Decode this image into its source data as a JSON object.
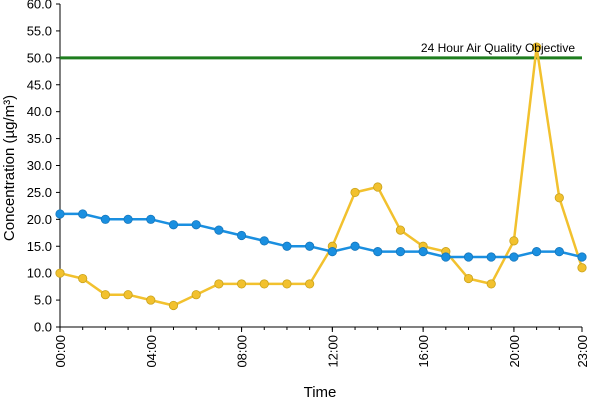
{
  "chart_data": {
    "type": "line",
    "title": "",
    "xlabel": "Time",
    "ylabel": "Concentration (µg/m³)",
    "ylim": [
      0,
      60
    ],
    "yticks": [
      "0.0",
      "5.0",
      "10.0",
      "15.0",
      "20.0",
      "25.0",
      "30.0",
      "35.0",
      "40.0",
      "45.0",
      "50.0",
      "55.0",
      "60.0"
    ],
    "x": [
      0,
      1,
      2,
      3,
      4,
      5,
      6,
      7,
      8,
      9,
      10,
      11,
      12,
      13,
      14,
      15,
      16,
      17,
      18,
      19,
      20,
      21,
      22,
      23
    ],
    "xtick_hours": [
      0,
      4,
      8,
      12,
      16,
      20,
      23
    ],
    "xtick_labels": [
      "00:00",
      "04:00",
      "08:00",
      "12:00",
      "16:00",
      "20:00",
      "23:00"
    ],
    "grid": false,
    "series": [
      {
        "color": "#1a8fe0",
        "values": [
          21,
          21,
          20,
          20,
          20,
          19,
          19,
          18,
          17,
          16,
          15,
          15,
          14,
          15,
          14,
          14,
          14,
          13,
          13,
          13,
          13,
          14,
          14,
          13
        ]
      },
      {
        "color": "#f2c12e",
        "values": [
          10,
          9,
          6,
          6,
          5,
          4,
          6,
          8,
          8,
          8,
          8,
          8,
          15,
          25,
          26,
          18,
          15,
          14,
          9,
          8,
          16,
          52,
          24,
          11
        ]
      }
    ],
    "reference_line": {
      "label": "24 Hour Air Quality Objective",
      "value": 50,
      "color": "#1e7d1e"
    }
  }
}
